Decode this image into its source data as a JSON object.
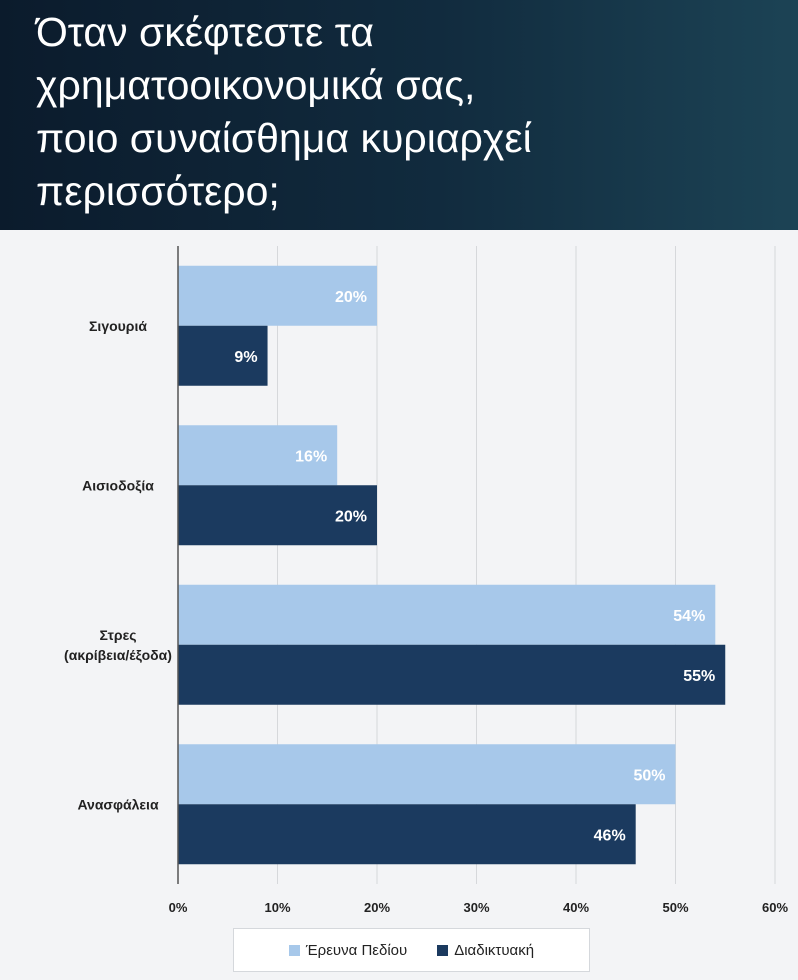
{
  "title_lines": [
    "Όταν σκέφτεστε τα",
    "χρηματοοικονομικά σας,",
    "ποιο συναίσθημα κυριαρχεί",
    "περισσότερο;"
  ],
  "colors": {
    "field": "#a7c8ea",
    "online": "#1b3a5f",
    "header_bg": "#0f2638"
  },
  "chart_data": {
    "type": "bar",
    "orientation": "horizontal",
    "categories": [
      [
        "Σιγουριά"
      ],
      [
        "Αισιοδοξία"
      ],
      [
        "Στρες",
        "(ακρίβεια/έξοδα)"
      ],
      [
        "Ανασφάλεια"
      ]
    ],
    "series": [
      {
        "name": "Έρευνα Πεδίου",
        "values": [
          20,
          16,
          54,
          50
        ],
        "labels": [
          "20%",
          "16%",
          "54%",
          "50%"
        ]
      },
      {
        "name": "Διαδικτυακή",
        "values": [
          9,
          20,
          55,
          46
        ],
        "labels": [
          "9%",
          "20%",
          "55%",
          "46%"
        ]
      }
    ],
    "xlim": [
      0,
      60
    ],
    "ticks": [
      "0%",
      "10%",
      "20%",
      "30%",
      "40%",
      "50%",
      "60%"
    ],
    "grid": true,
    "legend": "bottom"
  }
}
